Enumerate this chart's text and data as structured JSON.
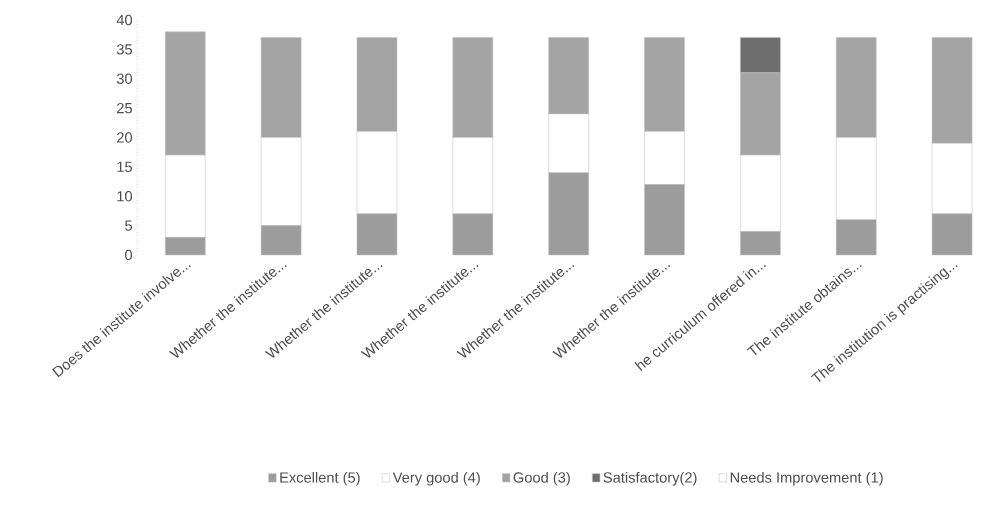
{
  "chart_data": {
    "type": "bar",
    "stacked": true,
    "categories": [
      "Does the institute involve...",
      "Whether the institute...",
      "Whether the institute...",
      "Whether the institute...",
      "Whether the institute...",
      "Whether the institute...",
      "he curriculum offered in...",
      "The institute obtains...",
      "The institution is practising..."
    ],
    "series": [
      {
        "name": "Excellent (5)",
        "color": "#9c9c9c",
        "values": [
          3,
          5,
          7,
          7,
          14,
          12,
          4,
          6,
          7
        ]
      },
      {
        "name": "Very good (4)",
        "color": "#ffffff",
        "values": [
          14,
          15,
          14,
          13,
          10,
          9,
          13,
          14,
          12
        ]
      },
      {
        "name": "Good (3)",
        "color": "#a4a4a4",
        "values": [
          21,
          17,
          16,
          17,
          13,
          16,
          14,
          17,
          18
        ]
      },
      {
        "name": "Satisfactory(2)",
        "color": "#6e6e6e",
        "values": [
          0,
          0,
          0,
          0,
          0,
          0,
          6,
          0,
          0
        ]
      },
      {
        "name": "Needs Improvement (1)",
        "color": "#ffffff",
        "values": [
          0,
          0,
          0,
          0,
          0,
          0,
          0,
          0,
          0
        ]
      }
    ],
    "ylim": [
      0,
      40
    ],
    "yticks": [
      0,
      5,
      10,
      15,
      20,
      25,
      30,
      35,
      40
    ],
    "grid": false,
    "legend": "bottom"
  }
}
